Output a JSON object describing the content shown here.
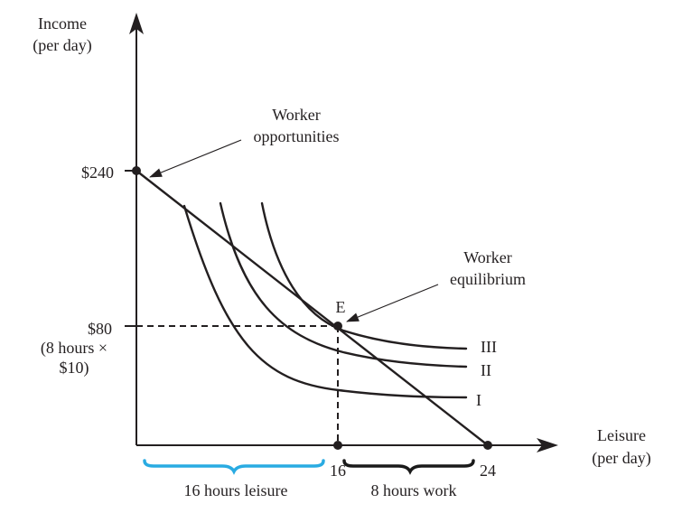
{
  "labels": {
    "y_axis_line1": "Income",
    "y_axis_line2": "(per day)",
    "x_axis_line1": "Leisure",
    "x_axis_line2": "(per day)",
    "tick_240": "$240",
    "tick_80": "$80",
    "tick_80_note_line1": "(8 hours ×",
    "tick_80_note_line2": "$10)",
    "tick_16": "16",
    "tick_24": "24",
    "opportunities_line1": "Worker",
    "opportunities_line2": "opportunities",
    "equilibrium_line1": "Worker",
    "equilibrium_line2": "equilibrium",
    "point_e": "E",
    "curve_1": "I",
    "curve_2": "II",
    "curve_3": "III",
    "brace_leisure": "16 hours leisure",
    "brace_work": "8 hours work"
  },
  "colors": {
    "ink": "#231f20",
    "leisure_brace": "#29abe2",
    "work_brace": "#1a1a1a"
  },
  "diagram": {
    "budget_line": {
      "income_intercept": 240,
      "leisure_intercept": 24,
      "wage_per_hour": 10
    },
    "equilibrium": {
      "leisure_hours": 16,
      "work_hours": 8,
      "income": 80
    },
    "indifference_curves": [
      "I",
      "II",
      "III"
    ]
  }
}
